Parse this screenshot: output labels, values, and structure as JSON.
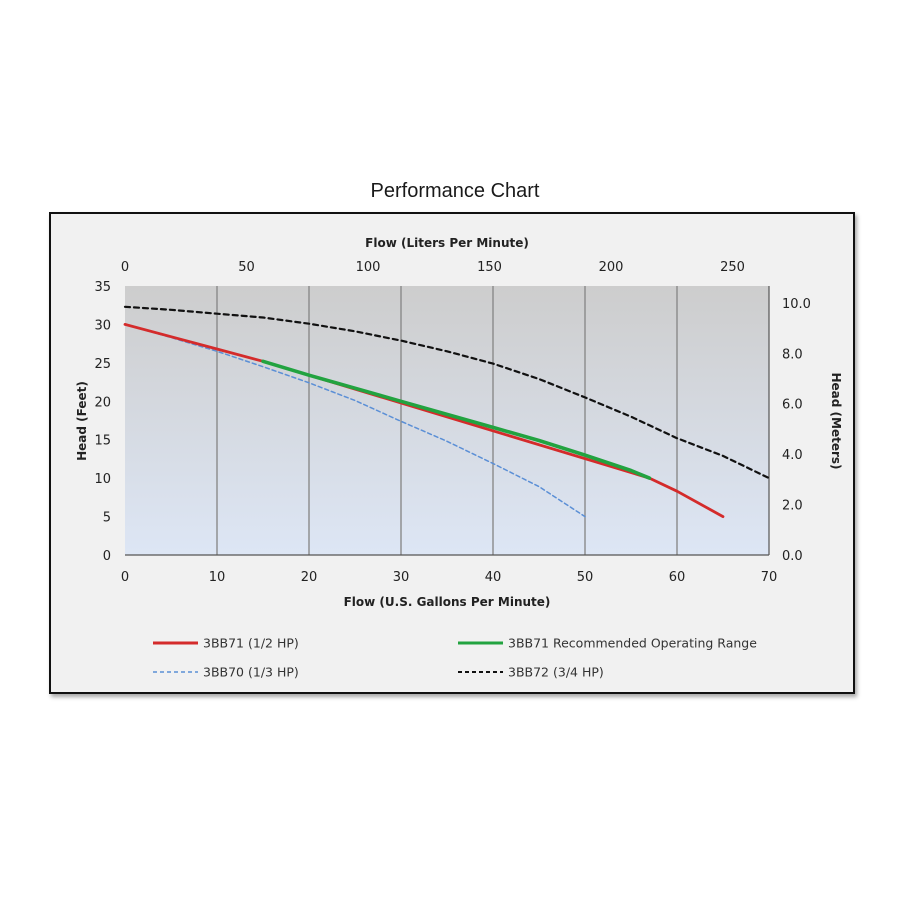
{
  "chart_data": {
    "type": "line",
    "title": "Performance Chart",
    "xlabel": "Flow (U.S. Gallons Per Minute)",
    "x2label": "Flow (Liters Per Minute)",
    "ylabel": "Head (Feet)",
    "y2label": "Head (Meters)",
    "xlim": [
      0,
      70
    ],
    "ylim": [
      0,
      35
    ],
    "x2lim": [
      0,
      265
    ],
    "y2lim": [
      0,
      10.67
    ],
    "x_ticks": [
      0,
      10,
      20,
      30,
      40,
      50,
      60,
      70
    ],
    "y_ticks": [
      0,
      5,
      10,
      15,
      20,
      25,
      30,
      35
    ],
    "x2_ticks": [
      0,
      50,
      100,
      150,
      200,
      250
    ],
    "y2_ticks": [
      "0.0",
      "2.0",
      "4.0",
      "6.0",
      "8.0",
      "10.0"
    ],
    "grid": true,
    "legend_position": "bottom",
    "series": [
      {
        "name": "3BB71 (1/2 HP)",
        "color": "#d42b2b",
        "style": "solid",
        "x": [
          0,
          5,
          10,
          15,
          57,
          60,
          65
        ],
        "y": [
          30,
          28.4,
          26.8,
          25.2,
          10,
          8.3,
          5
        ]
      },
      {
        "name": "3BB71 Recommended Operating Range",
        "color": "#22a340",
        "style": "solid",
        "x": [
          15,
          20,
          25,
          30,
          35,
          40,
          45,
          50,
          55,
          57
        ],
        "y": [
          25.2,
          23.4,
          21.7,
          20,
          18.3,
          16.6,
          14.9,
          13,
          11,
          10
        ]
      },
      {
        "name": "3BB70 (1/3 HP)",
        "color": "#5b8fd6",
        "style": "dashed",
        "x": [
          0,
          5,
          10,
          15,
          20,
          25,
          30,
          35,
          40,
          45,
          50
        ],
        "y": [
          30,
          28.3,
          26.5,
          24.5,
          22.4,
          20.1,
          17.4,
          14.8,
          11.9,
          8.9,
          5
        ]
      },
      {
        "name": "3BB72 (3/4 HP)",
        "color": "#111111",
        "style": "dashed",
        "x": [
          0,
          5,
          10,
          15,
          20,
          25,
          30,
          35,
          40,
          45,
          50,
          55,
          60,
          65,
          70
        ],
        "y": [
          32.3,
          31.9,
          31.4,
          30.9,
          30.1,
          29.1,
          27.9,
          26.5,
          24.9,
          22.9,
          20.5,
          18,
          15.2,
          12.9,
          10
        ]
      }
    ]
  }
}
